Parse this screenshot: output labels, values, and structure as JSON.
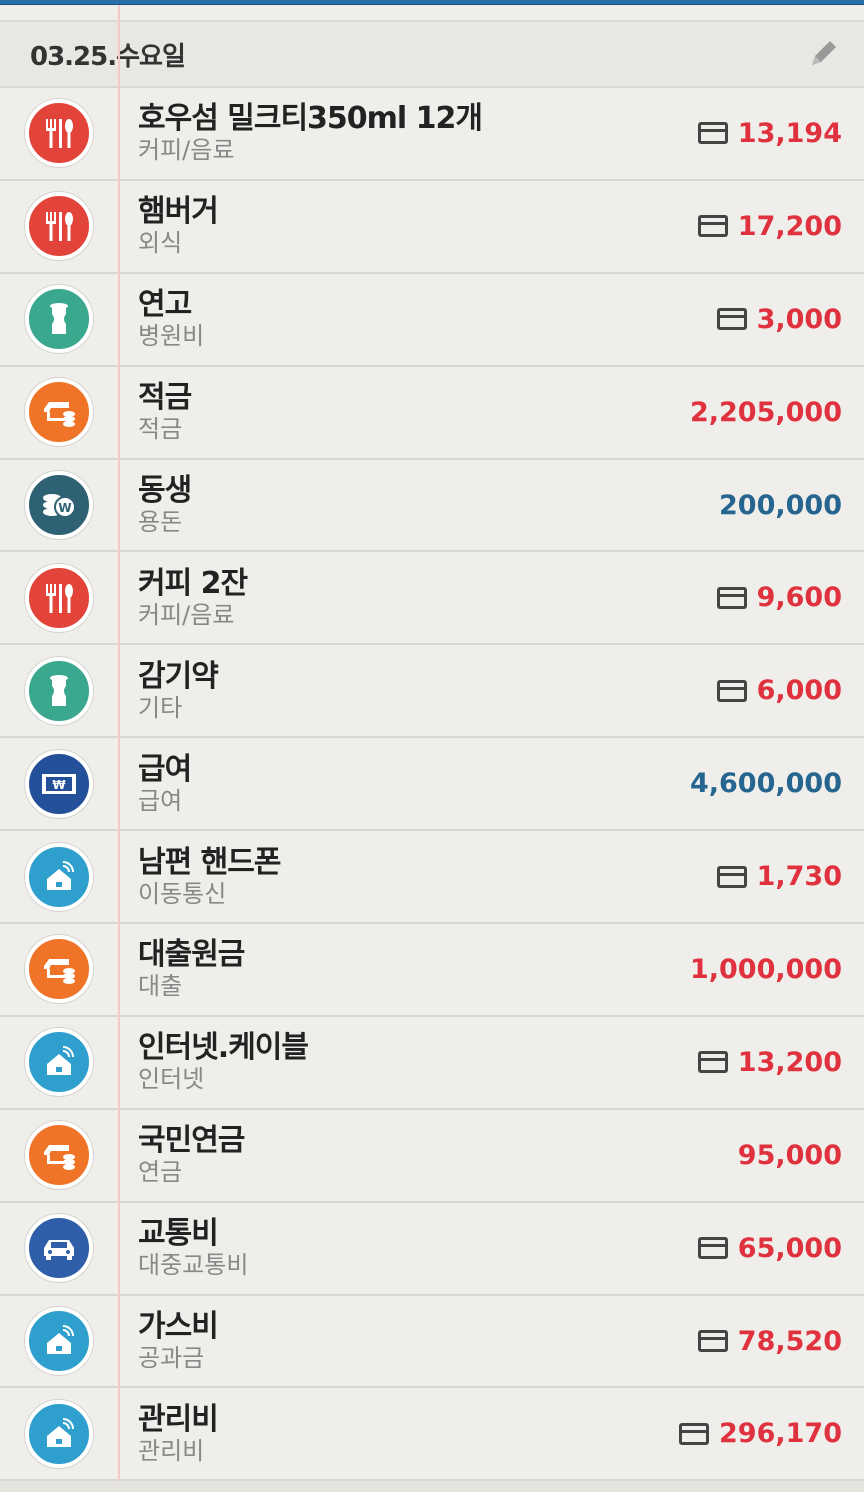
{
  "header": {
    "date": "03.25.수요일",
    "edit_icon": "pencil-icon"
  },
  "colors": {
    "expense": "#e0323e",
    "income": "#25658f",
    "food": "#e2443a",
    "medical": "#3aa88e",
    "savings": "#ef7428",
    "allowance": "#2f6174",
    "salary": "#24509a",
    "telecom": "#2f9fce",
    "transport": "#2e5fa8"
  },
  "items": [
    {
      "title": "호우섬 밀크티350ml 12개",
      "category": "커피/음료",
      "amount": "13,194",
      "card": true,
      "type": "expense",
      "icon": "fork-knife-icon",
      "color": "#e2443a"
    },
    {
      "title": "햄버거",
      "category": "외식",
      "amount": "17,200",
      "card": true,
      "type": "expense",
      "icon": "fork-knife-icon",
      "color": "#e2443a"
    },
    {
      "title": "연고",
      "category": "병원비",
      "amount": "3,000",
      "card": true,
      "type": "expense",
      "icon": "medicine-icon",
      "color": "#3aa88e"
    },
    {
      "title": "적금",
      "category": "적금",
      "amount": "2,205,000",
      "card": false,
      "type": "expense",
      "icon": "savings-icon",
      "color": "#ef7428"
    },
    {
      "title": "동생",
      "category": "용돈",
      "amount": "200,000",
      "card": false,
      "type": "income",
      "icon": "coins-icon",
      "color": "#2f6174"
    },
    {
      "title": "커피 2잔",
      "category": "커피/음료",
      "amount": "9,600",
      "card": true,
      "type": "expense",
      "icon": "fork-knife-icon",
      "color": "#e2443a"
    },
    {
      "title": "감기약",
      "category": "기타",
      "amount": "6,000",
      "card": true,
      "type": "expense",
      "icon": "medicine-icon",
      "color": "#3aa88e"
    },
    {
      "title": "급여",
      "category": "급여",
      "amount": "4,600,000",
      "card": false,
      "type": "income",
      "icon": "salary-icon",
      "color": "#24509a"
    },
    {
      "title": "남편 핸드폰",
      "category": "이동통신",
      "amount": "1,730",
      "card": true,
      "type": "expense",
      "icon": "house-wifi-icon",
      "color": "#2f9fce"
    },
    {
      "title": "대출원금",
      "category": "대출",
      "amount": "1,000,000",
      "card": false,
      "type": "expense",
      "icon": "savings-icon",
      "color": "#ef7428"
    },
    {
      "title": "인터넷.케이블",
      "category": "인터넷",
      "amount": "13,200",
      "card": true,
      "type": "expense",
      "icon": "house-wifi-icon",
      "color": "#2f9fce"
    },
    {
      "title": "국민연금",
      "category": "연금",
      "amount": "95,000",
      "card": false,
      "type": "expense",
      "icon": "savings-icon",
      "color": "#ef7428"
    },
    {
      "title": "교통비",
      "category": "대중교통비",
      "amount": "65,000",
      "card": true,
      "type": "expense",
      "icon": "car-icon",
      "color": "#2e5fa8"
    },
    {
      "title": "가스비",
      "category": "공과금",
      "amount": "78,520",
      "card": true,
      "type": "expense",
      "icon": "house-wifi-icon",
      "color": "#2f9fce"
    },
    {
      "title": "관리비",
      "category": "관리비",
      "amount": "296,170",
      "card": true,
      "type": "expense",
      "icon": "house-wifi-icon",
      "color": "#2f9fce"
    }
  ]
}
